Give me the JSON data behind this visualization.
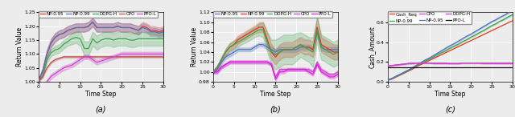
{
  "subplot_a": {
    "xlabel": "Time Step",
    "ylabel": "Return Value",
    "xlim": [
      0,
      30
    ],
    "ylim": [
      1.0,
      1.25
    ],
    "yticks": [
      1.0,
      1.05,
      1.1,
      1.15,
      1.2,
      1.25
    ],
    "series_order": [
      "NP-0.95",
      "NP-0.99",
      "DDPG-H",
      "CPO",
      "PPO-L"
    ],
    "colors": {
      "NP-0.95": "#e8321e",
      "NP-0.99": "#4f72c4",
      "DDPG-H": "#3da44d",
      "CPO": "#c0504d",
      "PPO-L": "#cc44cc"
    },
    "series": {
      "NP-0.95": [
        1.005,
        1.04,
        1.1,
        1.14,
        1.16,
        1.17,
        1.175,
        1.185,
        1.19,
        1.195,
        1.195,
        1.195,
        1.2,
        1.215,
        1.195,
        1.195,
        1.195,
        1.195,
        1.195,
        1.2,
        1.195,
        1.195,
        1.195,
        1.19,
        1.185,
        1.2,
        1.195,
        1.185,
        1.185,
        1.18,
        1.185
      ],
      "NP-0.99": [
        1.005,
        1.04,
        1.1,
        1.14,
        1.16,
        1.17,
        1.175,
        1.185,
        1.19,
        1.195,
        1.195,
        1.195,
        1.2,
        1.215,
        1.195,
        1.195,
        1.195,
        1.195,
        1.195,
        1.2,
        1.195,
        1.195,
        1.195,
        1.19,
        1.185,
        1.195,
        1.19,
        1.18,
        1.18,
        1.175,
        1.18
      ],
      "DDPG-H": [
        1.005,
        1.02,
        1.08,
        1.105,
        1.115,
        1.12,
        1.135,
        1.145,
        1.155,
        1.16,
        1.155,
        1.12,
        1.12,
        1.155,
        1.14,
        1.15,
        1.155,
        1.155,
        1.15,
        1.155,
        1.155,
        1.155,
        1.15,
        1.15,
        1.155,
        1.155,
        1.155,
        1.155,
        1.155,
        1.155,
        1.155
      ],
      "CPO": [
        1.005,
        1.02,
        1.05,
        1.07,
        1.08,
        1.085,
        1.09,
        1.09,
        1.09,
        1.09,
        1.09,
        1.09,
        1.09,
        1.09,
        1.09,
        1.09,
        1.09,
        1.09,
        1.09,
        1.09,
        1.09,
        1.09,
        1.09,
        1.09,
        1.09,
        1.09,
        1.09,
        1.09,
        1.09,
        1.09,
        1.09
      ],
      "PPO-L": [
        1.005,
        0.985,
        1.0,
        1.02,
        1.03,
        1.04,
        1.05,
        1.055,
        1.06,
        1.07,
        1.08,
        1.09,
        1.09,
        1.08,
        1.07,
        1.075,
        1.08,
        1.085,
        1.09,
        1.095,
        1.1,
        1.1,
        1.1,
        1.1,
        1.1,
        1.1,
        1.1,
        1.1,
        1.1,
        1.1,
        1.1
      ]
    },
    "std": {
      "NP-0.95": [
        0.005,
        0.01,
        0.015,
        0.015,
        0.015,
        0.015,
        0.015,
        0.015,
        0.015,
        0.015,
        0.015,
        0.015,
        0.015,
        0.015,
        0.015,
        0.015,
        0.015,
        0.015,
        0.015,
        0.015,
        0.015,
        0.015,
        0.015,
        0.015,
        0.015,
        0.015,
        0.015,
        0.015,
        0.015,
        0.015,
        0.015
      ],
      "NP-0.99": [
        0.005,
        0.01,
        0.015,
        0.015,
        0.015,
        0.015,
        0.015,
        0.015,
        0.015,
        0.015,
        0.015,
        0.015,
        0.015,
        0.015,
        0.015,
        0.015,
        0.015,
        0.015,
        0.015,
        0.015,
        0.015,
        0.015,
        0.015,
        0.015,
        0.015,
        0.015,
        0.015,
        0.015,
        0.015,
        0.015,
        0.015
      ],
      "DDPG-H": [
        0.003,
        0.005,
        0.01,
        0.012,
        0.015,
        0.015,
        0.015,
        0.015,
        0.02,
        0.02,
        0.025,
        0.025,
        0.025,
        0.025,
        0.025,
        0.025,
        0.025,
        0.025,
        0.025,
        0.025,
        0.025,
        0.025,
        0.025,
        0.025,
        0.025,
        0.025,
        0.025,
        0.025,
        0.025,
        0.025,
        0.025
      ],
      "CPO": [
        0.003,
        0.003,
        0.003,
        0.003,
        0.003,
        0.003,
        0.003,
        0.003,
        0.003,
        0.003,
        0.003,
        0.003,
        0.003,
        0.003,
        0.003,
        0.003,
        0.003,
        0.003,
        0.003,
        0.003,
        0.003,
        0.003,
        0.003,
        0.003,
        0.003,
        0.003,
        0.003,
        0.003,
        0.003,
        0.003,
        0.003
      ],
      "PPO-L": [
        0.005,
        0.005,
        0.008,
        0.008,
        0.008,
        0.008,
        0.008,
        0.008,
        0.008,
        0.008,
        0.008,
        0.008,
        0.008,
        0.008,
        0.008,
        0.008,
        0.008,
        0.008,
        0.008,
        0.008,
        0.008,
        0.008,
        0.008,
        0.008,
        0.008,
        0.008,
        0.008,
        0.008,
        0.008,
        0.008,
        0.008
      ]
    }
  },
  "subplot_b": {
    "xlabel": "Time Step",
    "ylabel": "Return Value",
    "xlim": [
      0,
      30
    ],
    "ylim": [
      0.98,
      1.12
    ],
    "yticks": [
      0.98,
      1.0,
      1.02,
      1.04,
      1.06,
      1.08,
      1.1,
      1.12
    ],
    "series_order": [
      "NP-0.95",
      "NP-0.99",
      "DDPG-H",
      "CPO",
      "PPO-L"
    ],
    "colors": {
      "NP-0.95": "#4f72c4",
      "NP-0.99": "#e8321e",
      "DDPG-H": "#3da44d",
      "CPO": "#cc44cc",
      "PPO-L": "#dd22dd"
    },
    "series": {
      "NP-0.95": [
        1.0,
        1.005,
        1.02,
        1.03,
        1.035,
        1.04,
        1.045,
        1.045,
        1.045,
        1.045,
        1.05,
        1.055,
        1.055,
        1.05,
        1.045,
        1.04,
        1.045,
        1.045,
        1.045,
        1.045,
        1.045,
        1.05,
        1.05,
        1.05,
        1.045,
        1.08,
        1.05,
        1.045,
        1.045,
        1.045,
        1.045
      ],
      "NP-0.99": [
        1.0,
        1.01,
        1.025,
        1.04,
        1.05,
        1.055,
        1.065,
        1.07,
        1.075,
        1.08,
        1.085,
        1.09,
        1.09,
        1.065,
        1.04,
        1.03,
        1.04,
        1.045,
        1.045,
        1.045,
        1.05,
        1.055,
        1.05,
        1.05,
        1.045,
        1.09,
        1.055,
        1.05,
        1.045,
        1.04,
        1.04
      ],
      "DDPG-H": [
        1.0,
        1.01,
        1.025,
        1.04,
        1.05,
        1.055,
        1.06,
        1.065,
        1.07,
        1.075,
        1.08,
        1.085,
        1.085,
        1.06,
        1.04,
        1.035,
        1.04,
        1.045,
        1.045,
        1.045,
        1.05,
        1.055,
        1.05,
        1.045,
        1.04,
        1.085,
        1.05,
        1.045,
        1.04,
        1.035,
        1.04
      ],
      "CPO": [
        1.0,
        1.0,
        1.01,
        1.015,
        1.02,
        1.02,
        1.02,
        1.02,
        1.02,
        1.02,
        1.02,
        1.02,
        1.02,
        1.02,
        1.015,
        0.99,
        1.005,
        1.005,
        1.005,
        1.005,
        1.005,
        1.005,
        1.005,
        1.005,
        1.0,
        1.02,
        1.005,
        1.0,
        0.995,
        0.995,
        1.0
      ],
      "PPO-L": [
        1.0,
        1.0,
        1.01,
        1.015,
        1.02,
        1.02,
        1.02,
        1.02,
        1.02,
        1.02,
        1.02,
        1.02,
        1.02,
        1.02,
        1.015,
        0.985,
        1.0,
        1.0,
        1.005,
        1.005,
        1.005,
        1.005,
        1.005,
        1.0,
        0.995,
        1.015,
        1.0,
        0.995,
        0.99,
        0.99,
        0.995
      ]
    },
    "std": {
      "NP-0.95": [
        0.003,
        0.003,
        0.004,
        0.004,
        0.004,
        0.004,
        0.004,
        0.004,
        0.004,
        0.004,
        0.004,
        0.004,
        0.004,
        0.005,
        0.005,
        0.005,
        0.005,
        0.005,
        0.005,
        0.005,
        0.005,
        0.005,
        0.005,
        0.005,
        0.005,
        0.005,
        0.005,
        0.005,
        0.005,
        0.005,
        0.005
      ],
      "NP-0.99": [
        0.003,
        0.003,
        0.005,
        0.005,
        0.008,
        0.008,
        0.008,
        0.008,
        0.008,
        0.008,
        0.008,
        0.01,
        0.01,
        0.015,
        0.015,
        0.015,
        0.015,
        0.015,
        0.015,
        0.015,
        0.015,
        0.015,
        0.015,
        0.015,
        0.015,
        0.02,
        0.015,
        0.015,
        0.015,
        0.015,
        0.015
      ],
      "DDPG-H": [
        0.003,
        0.003,
        0.005,
        0.007,
        0.008,
        0.008,
        0.009,
        0.009,
        0.01,
        0.01,
        0.01,
        0.012,
        0.015,
        0.02,
        0.025,
        0.03,
        0.03,
        0.03,
        0.03,
        0.03,
        0.028,
        0.025,
        0.025,
        0.025,
        0.03,
        0.025,
        0.025,
        0.025,
        0.025,
        0.025,
        0.025
      ],
      "CPO": [
        0.003,
        0.003,
        0.003,
        0.003,
        0.003,
        0.003,
        0.003,
        0.003,
        0.003,
        0.003,
        0.003,
        0.003,
        0.003,
        0.003,
        0.003,
        0.003,
        0.003,
        0.003,
        0.003,
        0.003,
        0.003,
        0.003,
        0.003,
        0.003,
        0.003,
        0.003,
        0.003,
        0.003,
        0.003,
        0.003,
        0.003
      ],
      "PPO-L": [
        0.003,
        0.003,
        0.003,
        0.003,
        0.003,
        0.003,
        0.003,
        0.003,
        0.003,
        0.003,
        0.003,
        0.003,
        0.003,
        0.003,
        0.003,
        0.003,
        0.003,
        0.003,
        0.003,
        0.003,
        0.003,
        0.003,
        0.003,
        0.003,
        0.003,
        0.003,
        0.003,
        0.003,
        0.003,
        0.003,
        0.003
      ]
    }
  },
  "subplot_c": {
    "xlabel": "Time Step",
    "ylabel": "Cash_Amount",
    "xlim": [
      0,
      30
    ],
    "ylim": [
      0.0,
      0.7
    ],
    "yticks": [
      0.0,
      0.2,
      0.4,
      0.6
    ],
    "series_order": [
      "Cash_Req",
      "NP-0.99",
      "NP-0.95",
      "CPO",
      "DDPG-H",
      "PPO-L"
    ],
    "legend_order": [
      "Cash_Req",
      "NP-0.99",
      "CPO",
      "NP-0.95",
      "DDPG-H",
      "PPO-L"
    ],
    "colors": {
      "Cash_Req": "#e8321e",
      "NP-0.99": "#3da44d",
      "NP-0.95": "#4f72c4",
      "DDPG-H": "#cc44cc",
      "CPO": "#cc44cc",
      "PPO-L": "#111111"
    },
    "series": {
      "Cash_Req": [
        0.02,
        0.03,
        0.05,
        0.07,
        0.09,
        0.11,
        0.13,
        0.155,
        0.175,
        0.195,
        0.215,
        0.235,
        0.255,
        0.275,
        0.295,
        0.315,
        0.335,
        0.355,
        0.375,
        0.395,
        0.415,
        0.435,
        0.455,
        0.475,
        0.495,
        0.515,
        0.535,
        0.555,
        0.575,
        0.595,
        0.615
      ],
      "NP-0.99": [
        0.02,
        0.035,
        0.055,
        0.075,
        0.095,
        0.115,
        0.14,
        0.165,
        0.185,
        0.21,
        0.23,
        0.25,
        0.275,
        0.295,
        0.315,
        0.34,
        0.36,
        0.38,
        0.405,
        0.425,
        0.45,
        0.47,
        0.495,
        0.515,
        0.54,
        0.565,
        0.585,
        0.61,
        0.63,
        0.655,
        0.675
      ],
      "NP-0.95": [
        0.02,
        0.035,
        0.058,
        0.078,
        0.1,
        0.12,
        0.145,
        0.17,
        0.195,
        0.22,
        0.24,
        0.265,
        0.29,
        0.315,
        0.34,
        0.365,
        0.385,
        0.41,
        0.435,
        0.46,
        0.48,
        0.505,
        0.53,
        0.555,
        0.58,
        0.605,
        0.625,
        0.65,
        0.67,
        0.695,
        0.715
      ],
      "CPO": [
        0.16,
        0.165,
        0.17,
        0.175,
        0.18,
        0.185,
        0.19,
        0.19,
        0.19,
        0.19,
        0.19,
        0.19,
        0.19,
        0.19,
        0.19,
        0.185,
        0.185,
        0.185,
        0.19,
        0.19,
        0.19,
        0.19,
        0.19,
        0.19,
        0.19,
        0.19,
        0.19,
        0.19,
        0.19,
        0.19,
        0.19
      ],
      "DDPG-H": [
        0.16,
        0.165,
        0.17,
        0.175,
        0.18,
        0.185,
        0.185,
        0.19,
        0.19,
        0.19,
        0.19,
        0.185,
        0.185,
        0.185,
        0.185,
        0.185,
        0.185,
        0.185,
        0.19,
        0.19,
        0.19,
        0.19,
        0.19,
        0.185,
        0.185,
        0.185,
        0.185,
        0.185,
        0.185,
        0.185,
        0.185
      ],
      "PPO-L": [
        0.145,
        0.145,
        0.145,
        0.145,
        0.145,
        0.145,
        0.145,
        0.145,
        0.145,
        0.145,
        0.145,
        0.145,
        0.145,
        0.145,
        0.145,
        0.145,
        0.145,
        0.145,
        0.145,
        0.145,
        0.145,
        0.145,
        0.145,
        0.145,
        0.145,
        0.145,
        0.145,
        0.145,
        0.145,
        0.145,
        0.145
      ]
    },
    "std": {
      "Cash_Req": [
        0.0,
        0.0,
        0.0,
        0.0,
        0.0,
        0.0,
        0.0,
        0.0,
        0.0,
        0.0,
        0.0,
        0.0,
        0.0,
        0.0,
        0.0,
        0.0,
        0.0,
        0.0,
        0.0,
        0.0,
        0.0,
        0.0,
        0.0,
        0.0,
        0.0,
        0.0,
        0.0,
        0.0,
        0.0,
        0.0,
        0.0
      ],
      "NP-0.99": [
        0.003,
        0.003,
        0.003,
        0.003,
        0.003,
        0.003,
        0.003,
        0.003,
        0.003,
        0.003,
        0.003,
        0.003,
        0.003,
        0.003,
        0.003,
        0.003,
        0.003,
        0.003,
        0.003,
        0.003,
        0.003,
        0.003,
        0.003,
        0.003,
        0.003,
        0.003,
        0.003,
        0.003,
        0.003,
        0.003,
        0.003
      ],
      "NP-0.95": [
        0.003,
        0.003,
        0.003,
        0.003,
        0.003,
        0.003,
        0.003,
        0.003,
        0.003,
        0.003,
        0.003,
        0.003,
        0.003,
        0.003,
        0.003,
        0.003,
        0.003,
        0.003,
        0.003,
        0.003,
        0.003,
        0.003,
        0.003,
        0.003,
        0.003,
        0.003,
        0.003,
        0.003,
        0.003,
        0.003,
        0.003
      ],
      "CPO": [
        0.003,
        0.003,
        0.003,
        0.003,
        0.003,
        0.003,
        0.003,
        0.003,
        0.003,
        0.003,
        0.003,
        0.003,
        0.003,
        0.003,
        0.003,
        0.003,
        0.003,
        0.003,
        0.003,
        0.003,
        0.003,
        0.003,
        0.003,
        0.003,
        0.003,
        0.003,
        0.003,
        0.003,
        0.003,
        0.003,
        0.003
      ],
      "DDPG-H": [
        0.003,
        0.003,
        0.003,
        0.003,
        0.003,
        0.003,
        0.003,
        0.003,
        0.003,
        0.003,
        0.003,
        0.003,
        0.003,
        0.003,
        0.003,
        0.003,
        0.003,
        0.003,
        0.003,
        0.003,
        0.003,
        0.003,
        0.003,
        0.003,
        0.003,
        0.003,
        0.003,
        0.003,
        0.003,
        0.003,
        0.003
      ],
      "PPO-L": [
        0.0,
        0.0,
        0.0,
        0.0,
        0.0,
        0.0,
        0.0,
        0.0,
        0.0,
        0.0,
        0.0,
        0.0,
        0.0,
        0.0,
        0.0,
        0.0,
        0.0,
        0.0,
        0.0,
        0.0,
        0.0,
        0.0,
        0.0,
        0.0,
        0.0,
        0.0,
        0.0,
        0.0,
        0.0,
        0.0,
        0.0
      ]
    }
  },
  "bg_color": "#ececec",
  "grid_color": "white",
  "label_fontsize": 5.5,
  "tick_fontsize": 4.5,
  "line_width": 0.9,
  "legend_fontsize": 4.0
}
